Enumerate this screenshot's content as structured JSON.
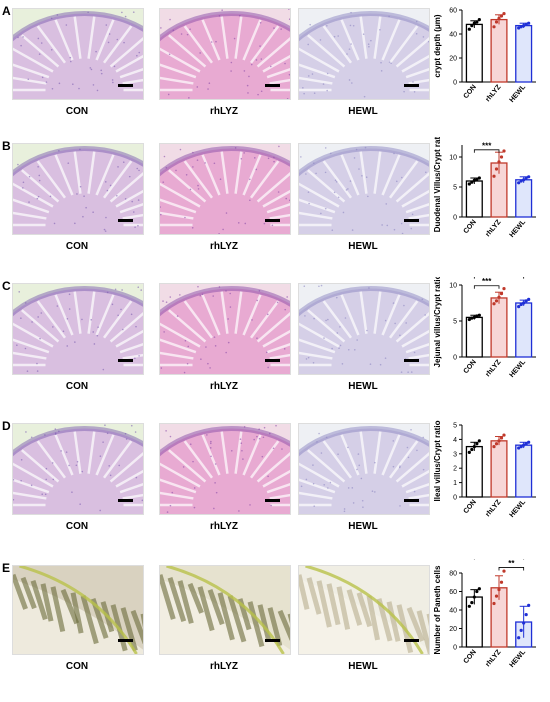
{
  "panels": [
    {
      "letter": "A",
      "labels": [
        "CON",
        "rhLYZ",
        "HEWL"
      ],
      "stain": "he"
    },
    {
      "letter": "B",
      "labels": [
        "CON",
        "rhLYZ",
        "HEWL"
      ],
      "stain": "he"
    },
    {
      "letter": "C",
      "labels": [
        "CON",
        "rhLYZ",
        "HEWL"
      ],
      "stain": "he"
    },
    {
      "letter": "D",
      "labels": [
        "CON",
        "rhLYZ",
        "HEWL"
      ],
      "stain": "he"
    },
    {
      "letter": "E",
      "labels": [
        "CON",
        "rhLYZ",
        "HEWL"
      ],
      "stain": "paneth"
    }
  ],
  "colors": {
    "con": "#000000",
    "rhlyz": "#c0392b",
    "rhlyz_fill": "#f7d6d6",
    "hewl": "#1f2fd6",
    "hewl_fill": "#dfe6fb"
  },
  "chart_data": [
    {
      "type": "bar",
      "categories": [
        "CON",
        "rhLYZ",
        "HEWL"
      ],
      "values": [
        48,
        52,
        47
      ],
      "errors": [
        3,
        4,
        2
      ],
      "points": [
        [
          44,
          47,
          49,
          50,
          52
        ],
        [
          46,
          50,
          53,
          55,
          57
        ],
        [
          45,
          46,
          47,
          48,
          49
        ]
      ],
      "ylabel": "crypt depth (μm)",
      "ylim": [
        0,
        60
      ],
      "yticks": [
        "0",
        "20",
        "40",
        "60"
      ],
      "significance": []
    },
    {
      "type": "bar",
      "categories": [
        "CON",
        "rhLYZ",
        "HEWL"
      ],
      "values": [
        6.0,
        9.0,
        6.2
      ],
      "errors": [
        0.5,
        1.8,
        0.5
      ],
      "points": [
        [
          5.5,
          5.8,
          6.1,
          6.3,
          6.5
        ],
        [
          6.8,
          8.0,
          9.2,
          10.0,
          11.0
        ],
        [
          5.7,
          6.0,
          6.2,
          6.5,
          6.7
        ]
      ],
      "ylabel": "Duodenal Villus/Crypt ratio",
      "ylim": [
        0,
        12
      ],
      "yticks": [
        "0",
        "5",
        "10"
      ],
      "significance": [
        {
          "from": 0,
          "to": 1,
          "label": "***",
          "y": 11.2
        }
      ]
    },
    {
      "type": "bar",
      "categories": [
        "CON",
        "rhLYZ",
        "HEWL"
      ],
      "values": [
        5.5,
        8.2,
        7.5
      ],
      "errors": [
        0.3,
        0.8,
        0.4
      ],
      "points": [
        [
          5.2,
          5.4,
          5.5,
          5.7,
          5.8
        ],
        [
          7.4,
          7.8,
          8.3,
          8.8,
          9.5
        ],
        [
          7.0,
          7.3,
          7.5,
          7.8,
          8.0
        ]
      ],
      "ylabel": "Jejunal  villus/Crypt ratio",
      "ylim": [
        0,
        10
      ],
      "yticks": [
        "0",
        "5",
        "10"
      ],
      "significance": [
        {
          "from": 0,
          "to": 1,
          "label": "***",
          "y": 9.9
        },
        {
          "from": 0,
          "to": 2,
          "label": "***",
          "y": 11.3
        }
      ]
    },
    {
      "type": "bar",
      "categories": [
        "CON",
        "rhLYZ",
        "HEWL"
      ],
      "values": [
        3.5,
        3.9,
        3.6
      ],
      "errors": [
        0.3,
        0.3,
        0.2
      ],
      "points": [
        [
          3.1,
          3.3,
          3.5,
          3.7,
          3.9
        ],
        [
          3.5,
          3.7,
          3.9,
          4.1,
          4.3
        ],
        [
          3.4,
          3.5,
          3.6,
          3.7,
          3.8
        ]
      ],
      "ylabel": "Ileal villus/Crypt ratio",
      "ylim": [
        0,
        5
      ],
      "yticks": [
        "0",
        "1",
        "2",
        "3",
        "4",
        "5"
      ],
      "significance": []
    },
    {
      "type": "bar",
      "categories": [
        "CON",
        "rhLYZ",
        "HEWL"
      ],
      "values": [
        54,
        64,
        27
      ],
      "errors": [
        8,
        13,
        17
      ],
      "points": [
        [
          44,
          48,
          54,
          60,
          63
        ],
        [
          47,
          55,
          62,
          70,
          82
        ],
        [
          10,
          18,
          26,
          35,
          45
        ]
      ],
      "ylabel": "Number of Paneth cells",
      "ylim": [
        0,
        80
      ],
      "yticks": [
        "0",
        "20",
        "40",
        "60",
        "80"
      ],
      "significance": [
        {
          "from": 1,
          "to": 2,
          "label": "**",
          "y": 86
        },
        {
          "from": 0,
          "to": 2,
          "label": "*",
          "y": 98
        }
      ]
    }
  ]
}
